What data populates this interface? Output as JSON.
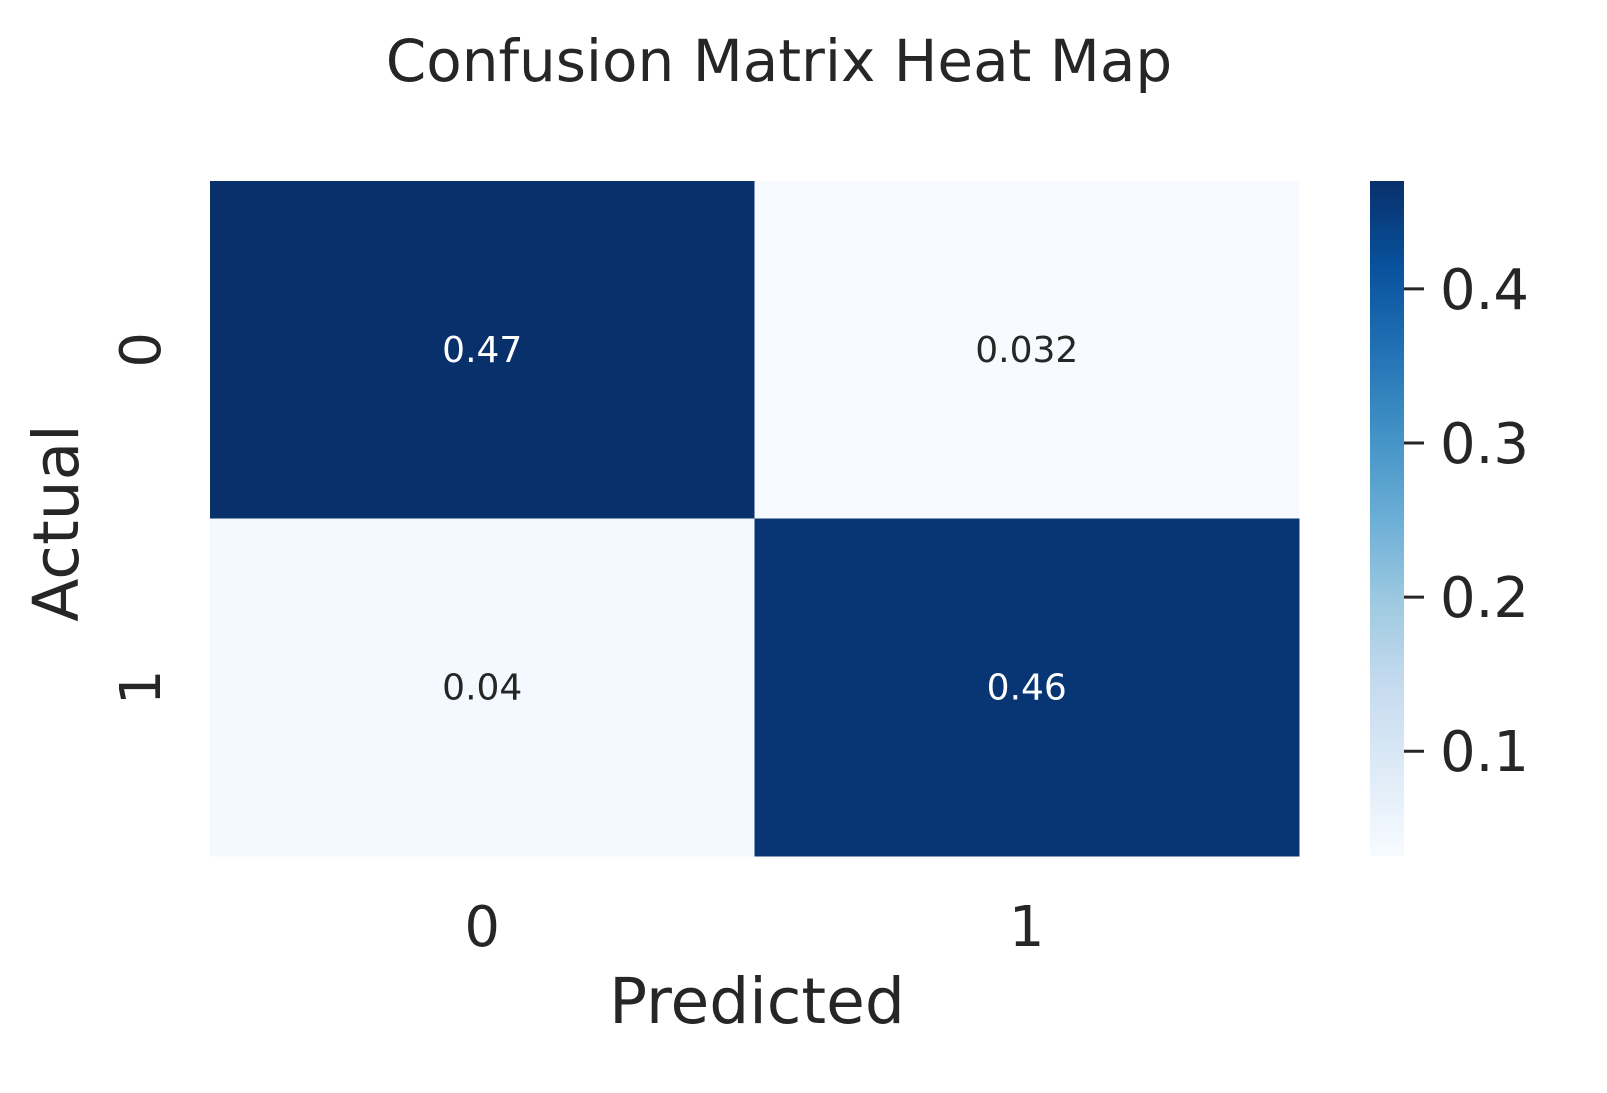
{
  "chart_data": {
    "type": "heatmap",
    "title": "Confusion Matrix Heat Map",
    "xlabel": "Predicted",
    "ylabel": "Actual",
    "x_categories": [
      "0",
      "1"
    ],
    "y_categories": [
      "0",
      "1"
    ],
    "values": [
      [
        0.47,
        0.032
      ],
      [
        0.04,
        0.46
      ]
    ],
    "cell_labels": [
      [
        "0.47",
        "0.032"
      ],
      [
        "0.04",
        "0.46"
      ]
    ],
    "colormap": "Blues",
    "colormap_colors": [
      "#f7fbff",
      "#deebf7",
      "#c6dbef",
      "#9ecae1",
      "#6baed6",
      "#4292c6",
      "#2171b5",
      "#08519c",
      "#08306b"
    ],
    "colorbar": {
      "vmin": 0.032,
      "vmax": 0.47,
      "ticks": [
        0.1,
        0.2,
        0.3,
        0.4
      ],
      "tick_labels": [
        "0.1",
        "0.2",
        "0.3",
        "0.4"
      ]
    },
    "grid": false,
    "legend": "colorbar-right"
  }
}
